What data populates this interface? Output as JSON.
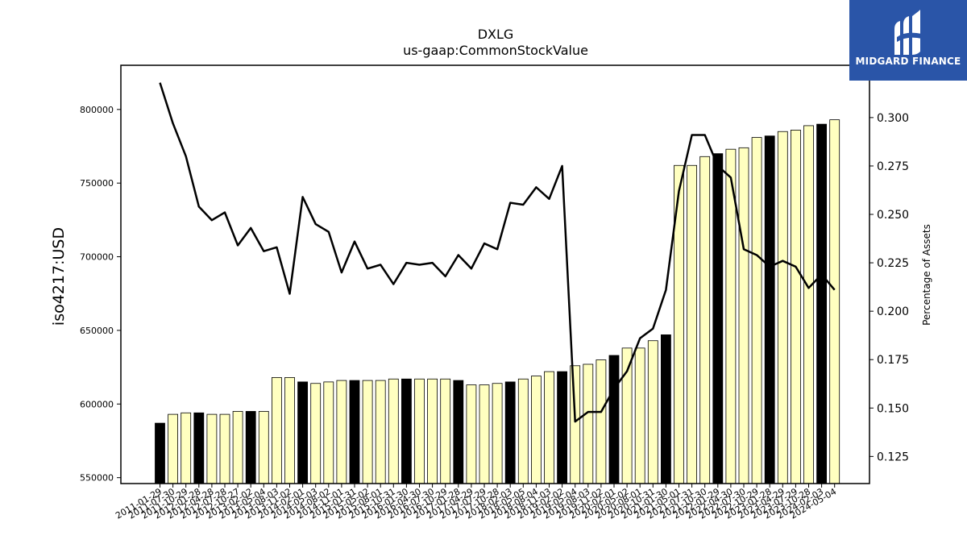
{
  "brand": {
    "name": "MIDGARD FINANCE",
    "icon": "midgard-m-logo-icon",
    "background_color": "#2a55a8"
  },
  "chart_data": {
    "type": "bar",
    "title": "DXLG",
    "subtitle": "us-gaap:CommonStockValue",
    "ylabel": "iso4217:USD",
    "y2label": "Percentage of Assets",
    "ylim": [
      546000,
      830000
    ],
    "y2lim": [
      0.111,
      0.327
    ],
    "yticks": [
      550000,
      600000,
      650000,
      700000,
      750000,
      800000
    ],
    "y2ticks": [
      0.125,
      0.15,
      0.175,
      0.2,
      0.225,
      0.25,
      0.275,
      0.3
    ],
    "categories": [
      "2011-01-29",
      "2011-07-30",
      "2011-10-29",
      "2012-01-28",
      "2012-04-28",
      "2012-07-28",
      "2012-10-27",
      "2013-02-02",
      "2013-05-04",
      "2013-08-03",
      "2013-11-02",
      "2014-02-01",
      "2014-05-03",
      "2014-08-02",
      "2014-11-01",
      "2015-01-31",
      "2015-05-02",
      "2015-08-01",
      "2015-10-31",
      "2016-01-30",
      "2016-04-30",
      "2016-07-30",
      "2016-10-29",
      "2017-01-28",
      "2017-04-29",
      "2017-07-29",
      "2017-10-28",
      "2018-02-03",
      "2018-05-05",
      "2018-08-04",
      "2018-11-03",
      "2019-02-02",
      "2019-05-04",
      "2019-08-03",
      "2019-11-02",
      "2020-02-01",
      "2020-05-02",
      "2020-08-01",
      "2020-10-31",
      "2021-01-30",
      "2021-05-01",
      "2021-07-31",
      "2021-10-30",
      "2022-01-29",
      "2022-04-30",
      "2022-07-30",
      "2022-10-29",
      "2023-01-28",
      "2023-04-29",
      "2023-07-29",
      "2023-10-28",
      "2024-02-03",
      "2024-05-04"
    ],
    "series": [
      {
        "values": [
          587000,
          593000,
          594000,
          594000,
          593000,
          593000,
          595000,
          595000,
          595000,
          618000,
          618000,
          615000,
          614000,
          615000,
          616000,
          616000,
          616000,
          616000,
          617000,
          617000,
          617000,
          617000,
          617000,
          616000,
          613000,
          613000,
          614000,
          615000,
          617000,
          619000,
          622000,
          622000,
          626000,
          627000,
          630000,
          633000,
          638000,
          638000,
          643000,
          647000,
          762000,
          762000,
          768000,
          770000,
          773000,
          774000,
          781000,
          782000,
          785000,
          786000,
          789000,
          790000,
          793000
        ],
        "annual": [
          true,
          false,
          false,
          true,
          false,
          false,
          false,
          true,
          false,
          false,
          false,
          true,
          false,
          false,
          false,
          true,
          false,
          false,
          false,
          true,
          false,
          false,
          false,
          true,
          false,
          false,
          false,
          true,
          false,
          false,
          false,
          true,
          false,
          false,
          false,
          true,
          false,
          false,
          false,
          true,
          false,
          false,
          false,
          true,
          false,
          false,
          false,
          true,
          false,
          false,
          false,
          true,
          false
        ],
        "colors": {
          "annual": "#000000",
          "quarter": "#ffffc0"
        }
      },
      {
        "axis": "right",
        "type": "line",
        "color": "#000000",
        "values": [
          0.318,
          0.297,
          0.28,
          0.254,
          0.247,
          0.251,
          0.234,
          0.243,
          0.231,
          0.233,
          0.209,
          0.259,
          0.245,
          0.241,
          0.22,
          0.236,
          0.222,
          0.224,
          0.214,
          0.225,
          0.224,
          0.225,
          0.218,
          0.229,
          0.222,
          0.235,
          0.232,
          0.256,
          0.255,
          0.264,
          0.258,
          0.275,
          0.143,
          0.148,
          0.148,
          0.16,
          0.169,
          0.186,
          0.191,
          0.211,
          0.262,
          0.291,
          0.291,
          0.275,
          0.269,
          0.232,
          0.229,
          0.223,
          0.226,
          0.223,
          0.212,
          0.219,
          0.211
        ]
      }
    ]
  }
}
